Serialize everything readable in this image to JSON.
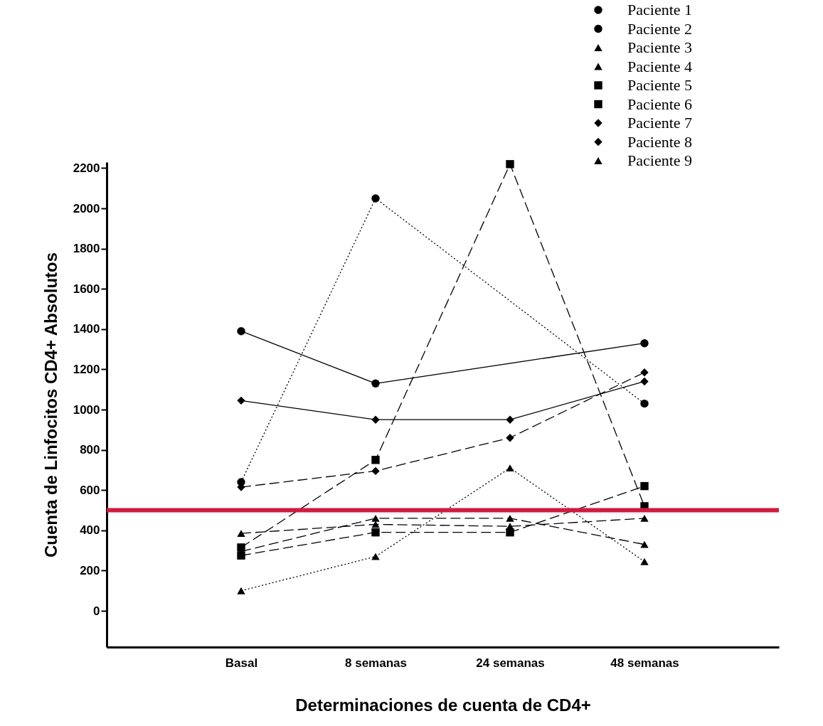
{
  "chart_data": {
    "type": "line",
    "xlabel": "Determinaciones de cuenta de CD4+",
    "ylabel": "Cuenta de Linfocitos CD4+ Absolutos",
    "categories": [
      "Basal",
      "8 semanas",
      "24 semanas",
      "48 semanas"
    ],
    "ylim": [
      -180,
      2230
    ],
    "yticks": [
      0,
      200,
      400,
      600,
      800,
      1000,
      1200,
      1400,
      1600,
      1800,
      2000,
      2200
    ],
    "legend": "top right",
    "series": [
      {
        "name": "Paciente 1",
        "color": "#000000",
        "marker": "circle",
        "line_style": "solid",
        "values": [
          1390,
          1130,
          null,
          1330
        ]
      },
      {
        "name": "Paciente 2",
        "color": "#000000",
        "marker": "circle",
        "line_style": "dotted",
        "values": [
          640,
          2050,
          null,
          1030
        ]
      },
      {
        "name": "Paciente 3",
        "color": "#000000",
        "marker": "triangle",
        "line_style": "dashed",
        "values": [
          295,
          460,
          460,
          330
        ]
      },
      {
        "name": "Paciente 4",
        "color": "#000000",
        "marker": "triangle",
        "line_style": "dashed",
        "values": [
          385,
          430,
          420,
          460
        ]
      },
      {
        "name": "Paciente 5",
        "color": "#000000",
        "marker": "square",
        "line_style": "dashed",
        "values": [
          315,
          750,
          2220,
          520
        ]
      },
      {
        "name": "Paciente 6",
        "color": "#000000",
        "marker": "square",
        "line_style": "dashed",
        "values": [
          275,
          390,
          390,
          620
        ]
      },
      {
        "name": "Paciente 7",
        "color": "#000000",
        "marker": "diamond",
        "line_style": "dashed",
        "values": [
          615,
          695,
          860,
          1185
        ]
      },
      {
        "name": "Paciente 8",
        "color": "#000000",
        "marker": "diamond",
        "line_style": "solid",
        "values": [
          1045,
          950,
          950,
          1140
        ]
      },
      {
        "name": "Paciente 9",
        "color": "#000000",
        "marker": "triangle",
        "line_style": "dotted",
        "values": [
          100,
          270,
          710,
          245
        ]
      }
    ],
    "ref_lines": [
      {
        "axis": "y",
        "value": 500,
        "color": "#d01c3f"
      }
    ]
  }
}
